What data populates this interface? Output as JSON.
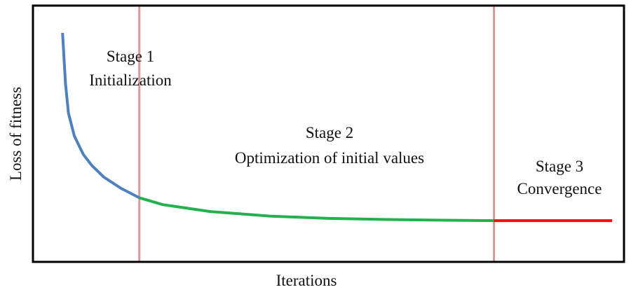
{
  "chart_data": {
    "type": "line",
    "title": "",
    "xlabel": "Iterations",
    "ylabel": "Loss of fitness",
    "grid": false,
    "stages": [
      {
        "line1": "Stage 1",
        "line2": "Initialization"
      },
      {
        "line1": "Stage 2",
        "line2": "Optimization of initial values"
      },
      {
        "line1": "Stage 3",
        "line2": "Convergence"
      }
    ],
    "boundaries": [
      0.18,
      0.78
    ],
    "series": [
      {
        "color": "#4f81bd",
        "x": [
          0.05,
          0.055,
          0.06,
          0.07,
          0.085,
          0.1,
          0.12,
          0.15,
          0.18
        ],
        "y": [
          1.0,
          0.78,
          0.65,
          0.55,
          0.47,
          0.42,
          0.37,
          0.32,
          0.28
        ]
      },
      {
        "color": "#22b14c",
        "x": [
          0.18,
          0.22,
          0.3,
          0.4,
          0.5,
          0.6,
          0.7,
          0.78
        ],
        "y": [
          0.28,
          0.25,
          0.22,
          0.2,
          0.19,
          0.185,
          0.182,
          0.18
        ]
      },
      {
        "color": "#ee1111",
        "x": [
          0.78,
          0.98
        ],
        "y": [
          0.18,
          0.18
        ]
      }
    ],
    "colors": {
      "boundary": "#d99a9a",
      "frame": "#000000"
    }
  }
}
